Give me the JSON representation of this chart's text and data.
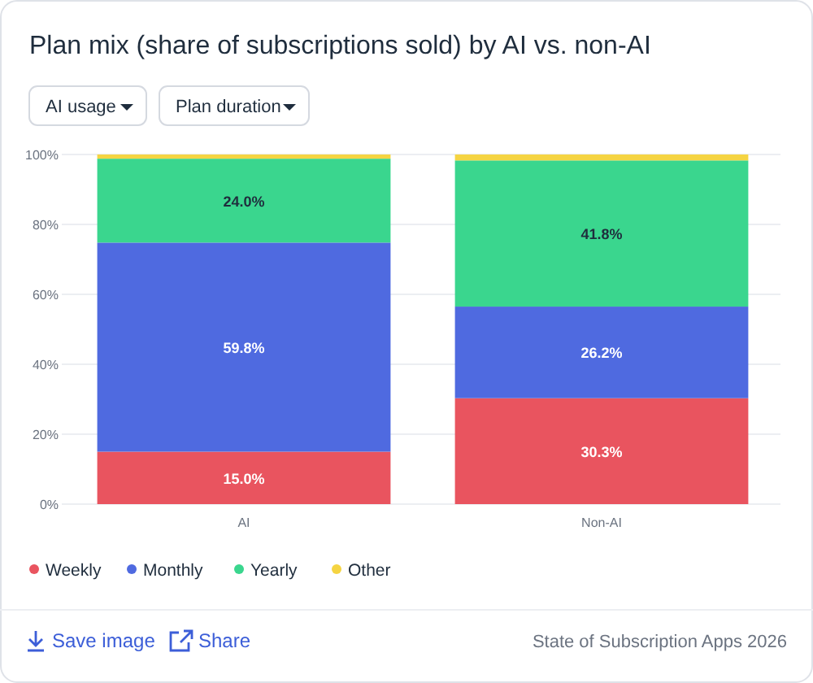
{
  "chart_data": {
    "type": "bar",
    "stacked": true,
    "title": "Plan mix (share of subscriptions sold) by AI vs. non-AI",
    "categories": [
      "AI",
      "Non-AI"
    ],
    "series": [
      {
        "name": "Weekly",
        "color": "#e9545f",
        "values": [
          15.0,
          30.3
        ],
        "value_labels": [
          "15.0%",
          "30.3%"
        ]
      },
      {
        "name": "Monthly",
        "color": "#4f6ae0",
        "values": [
          59.8,
          26.2
        ],
        "value_labels": [
          "59.8%",
          "26.2%"
        ]
      },
      {
        "name": "Yearly",
        "color": "#3ad68e",
        "values": [
          24.0,
          41.8
        ],
        "value_labels": [
          "24.0%",
          "41.8%"
        ]
      },
      {
        "name": "Other",
        "color": "#f5d442",
        "values": [
          1.2,
          1.7
        ],
        "value_labels": [
          null,
          null
        ]
      }
    ],
    "ylim": [
      0,
      100
    ],
    "yticks": [
      {
        "value": 0,
        "label": "0%"
      },
      {
        "value": 20,
        "label": "20%"
      },
      {
        "value": 40,
        "label": "40%"
      },
      {
        "value": 60,
        "label": "60%"
      },
      {
        "value": 80,
        "label": "80%"
      },
      {
        "value": 100,
        "label": "100%"
      }
    ],
    "grid": "y",
    "legend": "bottom left",
    "annotations": [
      "AI usage",
      "Plan duration",
      "Save image",
      "Share",
      "State of Subscription Apps 2026"
    ]
  }
}
